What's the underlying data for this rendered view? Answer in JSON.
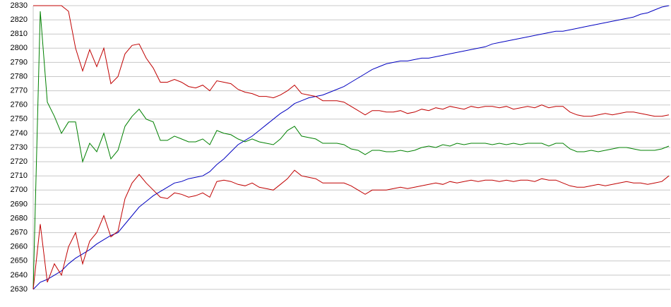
{
  "chart_data": {
    "type": "line",
    "grid": true,
    "ylim": [
      2630,
      2830
    ],
    "yticks": [
      2630,
      2640,
      2650,
      2660,
      2670,
      2680,
      2690,
      2700,
      2710,
      2720,
      2730,
      2740,
      2750,
      2760,
      2770,
      2780,
      2790,
      2800,
      2810,
      2820,
      2830
    ],
    "series": [
      {
        "color": "#0000c0",
        "values": [
          2630,
          2635,
          2637,
          2640,
          2643,
          2648,
          2652,
          2655,
          2658,
          2662,
          2665,
          2668,
          2670,
          2676,
          2682,
          2688,
          2692,
          2696,
          2699,
          2702,
          2705,
          2706,
          2708,
          2709,
          2710,
          2713,
          2718,
          2722,
          2727,
          2732,
          2735,
          2738,
          2742,
          2746,
          2750,
          2754,
          2757,
          2761,
          2763,
          2765,
          2766,
          2767,
          2769,
          2771,
          2773,
          2776,
          2779,
          2782,
          2785,
          2787,
          2789,
          2790,
          2791,
          2791,
          2792,
          2793,
          2793,
          2794,
          2795,
          2796,
          2797,
          2798,
          2799,
          2800,
          2801,
          2803,
          2804,
          2805,
          2806,
          2807,
          2808,
          2809,
          2810,
          2811,
          2812,
          2812,
          2813,
          2814,
          2815,
          2816,
          2817,
          2818,
          2819,
          2820,
          2821,
          2822,
          2824,
          2825,
          2827,
          2829,
          2830
        ]
      },
      {
        "color": "#008000",
        "values": [
          2630,
          2826,
          2762,
          2752,
          2740,
          2748,
          2748,
          2720,
          2733,
          2727,
          2740,
          2722,
          2728,
          2745,
          2752,
          2757,
          2750,
          2748,
          2735,
          2735,
          2738,
          2736,
          2734,
          2734,
          2736,
          2732,
          2742,
          2740,
          2739,
          2736,
          2734,
          2736,
          2734,
          2733,
          2732,
          2736,
          2742,
          2745,
          2738,
          2737,
          2736,
          2733,
          2733,
          2733,
          2732,
          2729,
          2728,
          2725,
          2728,
          2728,
          2727,
          2727,
          2728,
          2727,
          2728,
          2730,
          2731,
          2730,
          2732,
          2731,
          2733,
          2732,
          2733,
          2733,
          2733,
          2732,
          2733,
          2732,
          2733,
          2732,
          2733,
          2733,
          2733,
          2731,
          2733,
          2733,
          2729,
          2727,
          2727,
          2728,
          2727,
          2728,
          2729,
          2730,
          2730,
          2729,
          2728,
          2728,
          2728,
          2729,
          2731
        ]
      },
      {
        "color": "#c00000",
        "values": [
          2830,
          2830,
          2830,
          2830,
          2830,
          2826,
          2800,
          2784,
          2799,
          2787,
          2800,
          2775,
          2780,
          2796,
          2802,
          2803,
          2793,
          2786,
          2776,
          2776,
          2778,
          2776,
          2773,
          2772,
          2774,
          2770,
          2777,
          2776,
          2775,
          2771,
          2769,
          2768,
          2766,
          2766,
          2765,
          2767,
          2770,
          2774,
          2768,
          2767,
          2766,
          2763,
          2763,
          2763,
          2762,
          2759,
          2756,
          2753,
          2756,
          2756,
          2755,
          2755,
          2756,
          2754,
          2755,
          2757,
          2756,
          2758,
          2757,
          2759,
          2758,
          2757,
          2759,
          2758,
          2759,
          2759,
          2758,
          2759,
          2757,
          2758,
          2759,
          2758,
          2760,
          2758,
          2759,
          2759,
          2755,
          2753,
          2752,
          2752,
          2753,
          2754,
          2753,
          2754,
          2755,
          2755,
          2754,
          2753,
          2752,
          2752,
          2753
        ]
      },
      {
        "color": "#c00000",
        "values": [
          2630,
          2676,
          2635,
          2648,
          2640,
          2660,
          2670,
          2648,
          2664,
          2670,
          2682,
          2667,
          2671,
          2694,
          2705,
          2711,
          2705,
          2700,
          2695,
          2694,
          2698,
          2697,
          2695,
          2696,
          2698,
          2695,
          2706,
          2707,
          2706,
          2704,
          2703,
          2705,
          2702,
          2701,
          2700,
          2704,
          2708,
          2714,
          2710,
          2709,
          2708,
          2705,
          2705,
          2705,
          2705,
          2703,
          2700,
          2697,
          2700,
          2700,
          2700,
          2701,
          2702,
          2701,
          2702,
          2703,
          2704,
          2705,
          2704,
          2706,
          2705,
          2706,
          2707,
          2706,
          2707,
          2707,
          2706,
          2707,
          2706,
          2707,
          2707,
          2706,
          2708,
          2707,
          2707,
          2705,
          2703,
          2702,
          2702,
          2703,
          2704,
          2703,
          2704,
          2705,
          2706,
          2705,
          2705,
          2704,
          2705,
          2706,
          2710
        ]
      }
    ]
  }
}
